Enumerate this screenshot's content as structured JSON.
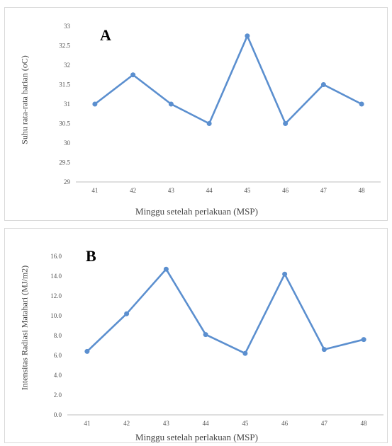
{
  "chart_data": [
    {
      "type": "line",
      "panel_label": "A",
      "xlabel": "Minggu setelah perlakuan (MSP)",
      "ylabel": "Suhu rata-rata harian (oC)",
      "categories": [
        "41",
        "42",
        "43",
        "44",
        "45",
        "46",
        "47",
        "48"
      ],
      "values": [
        31,
        31.75,
        31,
        30.5,
        32.75,
        30.5,
        31.5,
        31
      ],
      "ylim": [
        29,
        33
      ],
      "yticks": [
        "29",
        "29.5",
        "30",
        "30.5",
        "31",
        "31.5",
        "32",
        "32.5",
        "33"
      ],
      "grid": false,
      "color": "#5b8fcf"
    },
    {
      "type": "line",
      "panel_label": "B",
      "xlabel": "Minggu setelah perlakuan (MSP)",
      "ylabel": "Intensitas Radiasi Matahari (MJ/m2)",
      "categories": [
        "41",
        "42",
        "43",
        "44",
        "45",
        "46",
        "47",
        "48"
      ],
      "values": [
        6.4,
        10.2,
        14.7,
        8.1,
        6.2,
        14.2,
        6.6,
        7.6
      ],
      "ylim": [
        0,
        16
      ],
      "yticks": [
        "0.0",
        "2.0",
        "4.0",
        "6.0",
        "8.0",
        "10.0",
        "12.0",
        "14.0",
        "16.0"
      ],
      "grid": false,
      "color": "#5b8fcf"
    }
  ]
}
